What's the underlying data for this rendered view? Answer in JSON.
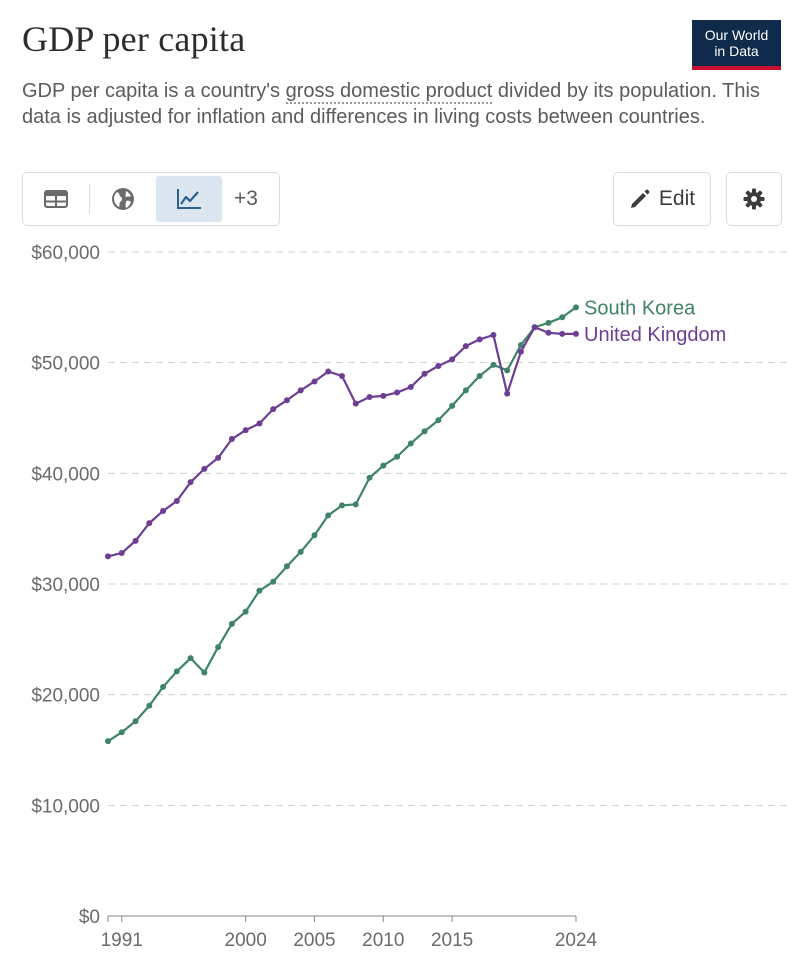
{
  "header": {
    "title": "GDP per capita",
    "logo_line1": "Our World",
    "logo_line2": "in Data",
    "subtitle_before": "GDP per capita is a country's ",
    "subtitle_link": "gross domestic product",
    "subtitle_after": " divided by its population. This data is adjusted for inflation and differences in living costs between countries."
  },
  "toolbar": {
    "table_icon": "table-icon",
    "map_icon": "globe-icon",
    "chart_icon": "line-chart-icon",
    "more_label": "+3",
    "edit_label": "Edit",
    "edit_icon": "pencil-icon",
    "settings_icon": "gear-icon"
  },
  "colors": {
    "south_korea": "#3f8467",
    "united_kingdom": "#6d3e91",
    "grid": "#d0d0d0",
    "active_tab": "#dce6f0"
  },
  "chart_data": {
    "type": "line",
    "x_ticks": [
      1991,
      2000,
      2005,
      2010,
      2015,
      2024
    ],
    "x_tick_labels": [
      "1991",
      "2000",
      "2005",
      "2010",
      "2015",
      "2024"
    ],
    "y_ticks": [
      0,
      10000,
      20000,
      30000,
      40000,
      50000,
      60000
    ],
    "y_tick_labels": [
      "$0",
      "$10,000",
      "$20,000",
      "$30,000",
      "$40,000",
      "$50,000",
      "$60,000"
    ],
    "xlim": [
      1990,
      2024
    ],
    "ylim": [
      0,
      60000
    ],
    "grid": "horizontal dashed",
    "x": [
      1990,
      1991,
      1992,
      1993,
      1994,
      1995,
      1996,
      1997,
      1998,
      1999,
      2000,
      2001,
      2002,
      2003,
      2004,
      2005,
      2006,
      2007,
      2008,
      2009,
      2010,
      2011,
      2012,
      2013,
      2014,
      2015,
      2016,
      2017,
      2018,
      2019,
      2020,
      2021,
      2022,
      2023,
      2024
    ],
    "series": [
      {
        "name": "South Korea",
        "color": "#3f8467",
        "values": [
          15800,
          16600,
          17600,
          19000,
          20700,
          22100,
          23300,
          22000,
          24300,
          26400,
          27500,
          29400,
          30200,
          31600,
          32900,
          34400,
          36200,
          37100,
          37200,
          39600,
          40700,
          41500,
          42700,
          43800,
          44800,
          46100,
          47500,
          48800,
          49800,
          49300,
          51600,
          53200,
          53600,
          54100,
          55000
        ]
      },
      {
        "name": "United Kingdom",
        "color": "#6d3e91",
        "values": [
          32500,
          32800,
          33900,
          35500,
          36600,
          37500,
          39200,
          40400,
          41400,
          43100,
          43900,
          44500,
          45800,
          46600,
          47500,
          48300,
          49200,
          48800,
          46300,
          46900,
          47000,
          47300,
          47800,
          49000,
          49700,
          50300,
          51500,
          52100,
          52500,
          47200,
          51000,
          53200,
          52700,
          52600,
          52600
        ]
      }
    ]
  }
}
